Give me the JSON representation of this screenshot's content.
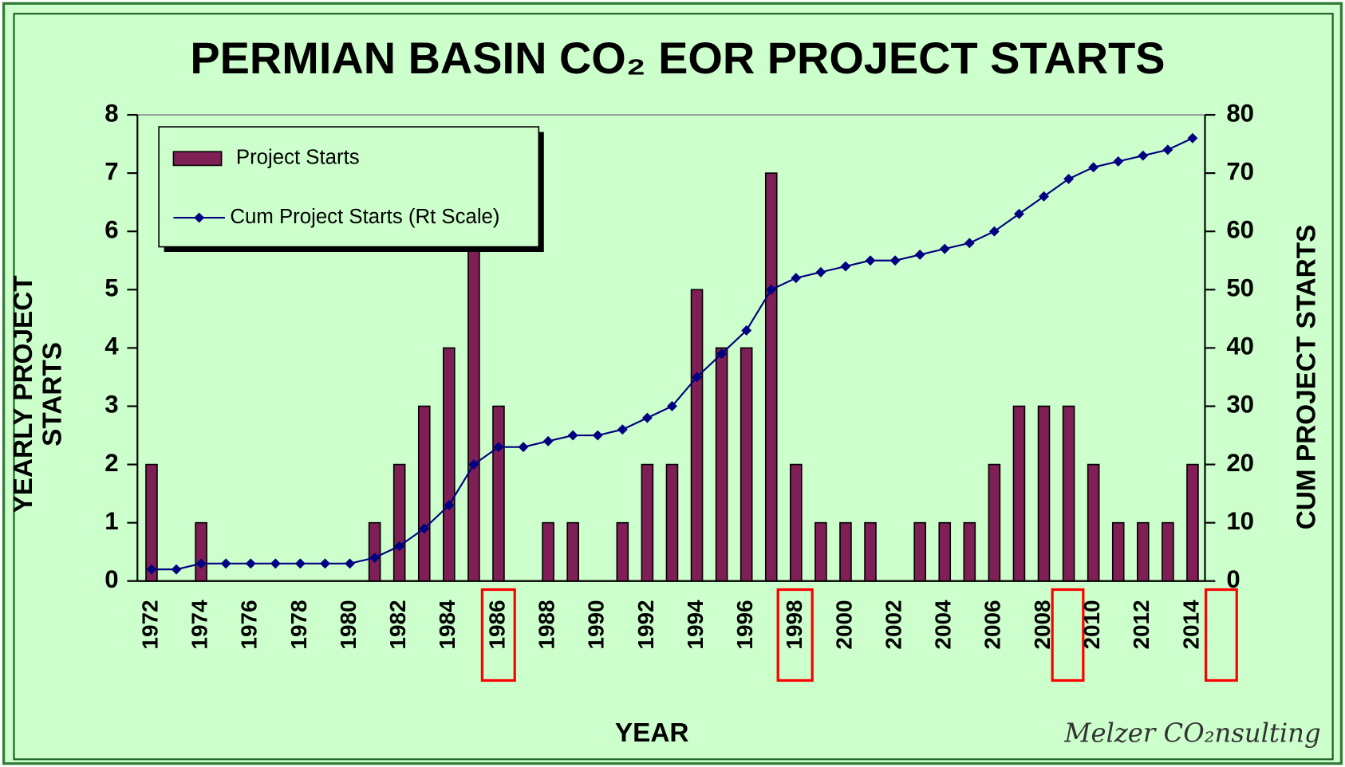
{
  "chart_data": {
    "type": "bar_line",
    "title": "PERMIAN BASIN CO₂ EOR PROJECT STARTS",
    "x_label": "YEAR",
    "y_label": "YEARLY PROJECT STARTS",
    "y2_label": "CUM PROJECT STARTS",
    "footer": "Melzer CO₂nsulting",
    "categories": [
      "1972",
      null,
      "1974",
      null,
      "1976",
      null,
      "1978",
      null,
      "1980",
      null,
      "1982",
      null,
      "1984",
      null,
      "1986",
      null,
      "1988",
      null,
      "1990",
      null,
      "1992",
      null,
      "1994",
      null,
      "1996",
      null,
      "1998",
      null,
      "2000",
      null,
      "2002",
      null,
      "2004",
      null,
      "2006",
      null,
      "2008",
      null,
      "2010",
      null,
      "2012",
      null,
      "2014"
    ],
    "series": [
      {
        "name": "Project Starts",
        "type": "bar",
        "axis": "y",
        "color": "#7f1f55",
        "values": [
          2,
          0,
          1,
          0,
          0,
          0,
          0,
          0,
          0,
          1,
          2,
          3,
          4,
          7,
          3,
          0,
          1,
          1,
          0,
          1,
          2,
          2,
          5,
          4,
          4,
          7,
          2,
          1,
          1,
          1,
          0,
          1,
          1,
          1,
          2,
          3,
          3,
          3,
          2,
          1,
          1,
          1,
          2
        ]
      },
      {
        "name": "Cum Project Starts (Rt Scale)",
        "type": "line",
        "axis": "y2",
        "color": "#000080",
        "values": [
          2,
          2,
          3,
          3,
          3,
          3,
          3,
          3,
          3,
          4,
          6,
          9,
          13,
          20,
          23,
          23,
          24,
          25,
          25,
          26,
          28,
          30,
          35,
          39,
          43,
          50,
          52,
          53,
          54,
          55,
          55,
          56,
          57,
          58,
          60,
          63,
          66,
          69,
          71,
          72,
          73,
          74,
          76
        ]
      }
    ],
    "ylim": [
      0,
      8
    ],
    "yticks": [
      0,
      1,
      2,
      3,
      4,
      5,
      6,
      7,
      8
    ],
    "y2lim": [
      0,
      80
    ],
    "y2ticks": [
      0,
      10,
      20,
      30,
      40,
      50,
      60,
      70,
      80
    ],
    "legend": "upper left",
    "grid": false
  }
}
